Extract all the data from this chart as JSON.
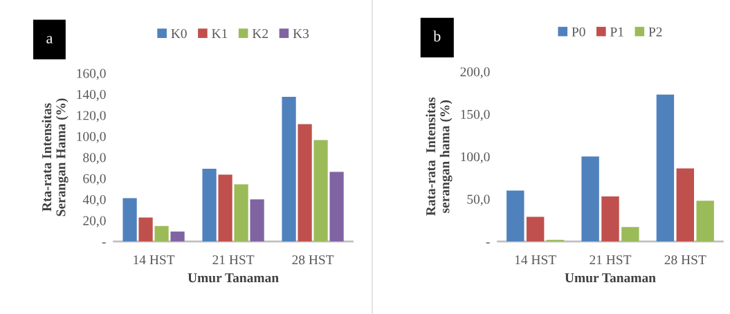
{
  "chart_data": [
    {
      "type": "bar",
      "annotations": [
        "a"
      ],
      "xlabel": "Umur Tanaman",
      "ylabel": "Rta-rata Intensitas\nSerangan Hama (%)",
      "categories": [
        "14 HST",
        "21 HST",
        "28 HST"
      ],
      "series": [
        {
          "name": "K0",
          "color": "#4f81bd",
          "values": [
            41.2,
            69.1,
            137.5
          ]
        },
        {
          "name": "K1",
          "color": "#c0504d",
          "values": [
            22.7,
            63.6,
            111.6
          ]
        },
        {
          "name": "K2",
          "color": "#9bbb59",
          "values": [
            14.7,
            54.4,
            96.4
          ]
        },
        {
          "name": "K3",
          "color": "#8064a2",
          "values": [
            9.5,
            40.1,
            66.2
          ]
        }
      ],
      "ylim": [
        0,
        160
      ],
      "yticks": [
        {
          "value": 0,
          "label": "-"
        },
        {
          "value": 20,
          "label": "20,0"
        },
        {
          "value": 40,
          "label": "40,0"
        },
        {
          "value": 60,
          "label": "60,0"
        },
        {
          "value": 80,
          "label": "80,0"
        },
        {
          "value": 100,
          "label": "100,0"
        },
        {
          "value": 120,
          "label": "120,0"
        },
        {
          "value": 140,
          "label": "140,0"
        },
        {
          "value": 160,
          "label": "160,0"
        }
      ],
      "grid": false,
      "legend": "top"
    },
    {
      "type": "bar",
      "annotations": [
        "b"
      ],
      "xlabel": "Umur Tanaman",
      "ylabel": "Rata-rata  Intensitas\nserangan hama (%)",
      "categories": [
        "14 HST",
        "21 HST",
        "28 HST"
      ],
      "series": [
        {
          "name": "P0",
          "color": "#4f81bd",
          "values": [
            60,
            100,
            173
          ]
        },
        {
          "name": "P1",
          "color": "#c0504d",
          "values": [
            29,
            53,
            86
          ]
        },
        {
          "name": "P2",
          "color": "#9bbb59",
          "values": [
            2,
            17,
            48
          ]
        }
      ],
      "ylim": [
        0,
        200
      ],
      "yticks": [
        {
          "value": 0,
          "label": "-"
        },
        {
          "value": 50,
          "label": "50,0"
        },
        {
          "value": 100,
          "label": "100,0"
        },
        {
          "value": 150,
          "label": "150,0"
        },
        {
          "value": 200,
          "label": "200,0"
        }
      ],
      "grid": false,
      "legend": "top"
    }
  ]
}
